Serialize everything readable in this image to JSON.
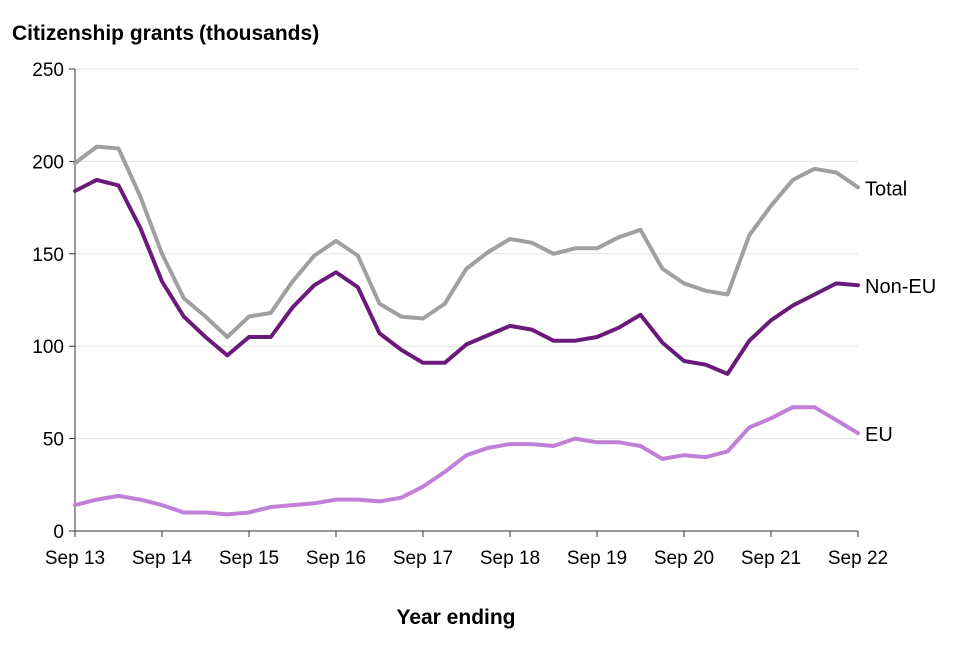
{
  "chart_data": {
    "type": "line",
    "title": "Citizenship grants",
    "title_unit": "(thousands)",
    "xlabel": "Year ending",
    "ylabel": "",
    "ylim": [
      0,
      250
    ],
    "yticks": [
      0,
      50,
      100,
      150,
      200,
      250
    ],
    "x_tick_labels": [
      "Sep 13",
      "Sep 14",
      "Sep 15",
      "Sep 16",
      "Sep 17",
      "Sep 18",
      "Sep 19",
      "Sep 20",
      "Sep 21",
      "Sep 22"
    ],
    "grid": true,
    "series": [
      {
        "name": "Total",
        "color": "#a0a0a0",
        "values": [
          199,
          208,
          207,
          181,
          150,
          126,
          116,
          105,
          116,
          118,
          135,
          149,
          157,
          149,
          123,
          116,
          115,
          123,
          142,
          151,
          158,
          156,
          150,
          153,
          153,
          159,
          163,
          142,
          134,
          130,
          128,
          160,
          176,
          190,
          196,
          194,
          186
        ]
      },
      {
        "name": "Non-EU",
        "color": "#6a1b7a",
        "values": [
          184,
          190,
          187,
          164,
          135,
          116,
          105,
          95,
          105,
          105,
          121,
          133,
          140,
          132,
          107,
          98,
          91,
          91,
          101,
          106,
          111,
          109,
          103,
          103,
          105,
          110,
          117,
          102,
          92,
          90,
          85,
          103,
          114,
          122,
          128,
          134,
          133
        ]
      },
      {
        "name": "EU",
        "color": "#c180d8",
        "values": [
          14,
          17,
          19,
          17,
          14,
          10,
          10,
          9,
          10,
          13,
          14,
          15,
          17,
          17,
          16,
          18,
          24,
          32,
          41,
          45,
          47,
          47,
          46,
          50,
          48,
          48,
          46,
          39,
          41,
          40,
          43,
          56,
          61,
          67,
          67,
          60,
          53
        ]
      }
    ]
  }
}
